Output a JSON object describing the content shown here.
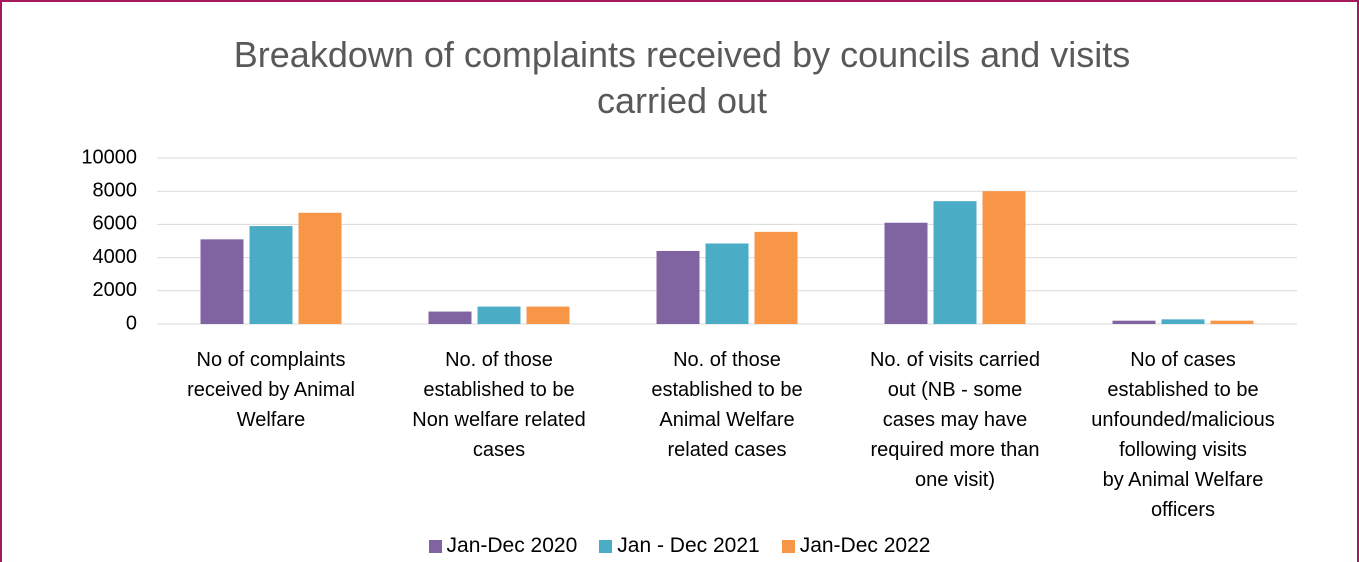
{
  "chart_data": {
    "type": "bar",
    "title": "Breakdown of complaints received by councils and visits carried out",
    "categories": [
      "No of complaints\nreceived by Animal\nWelfare",
      "No. of those\nestablished to be\nNon welfare related\ncases",
      "No. of those\nestablished to be\nAnimal Welfare\nrelated cases",
      "No. of visits carried\nout (NB - some\ncases may have\nrequired more than\none visit)",
      "No of cases\nestablished to be\nunfounded/malicious\nfollowing  visits\nby Animal Welfare\nofficers"
    ],
    "series": [
      {
        "name": "Jan-Dec 2020",
        "color": "#8064a2",
        "values": [
          5100,
          750,
          4400,
          6100,
          200
        ]
      },
      {
        "name": "Jan - Dec 2021",
        "color": "#4bacc6",
        "values": [
          5900,
          1050,
          4850,
          7400,
          280
        ]
      },
      {
        "name": "Jan-Dec 2022",
        "color": "#f79646",
        "values": [
          6700,
          1050,
          5550,
          8000,
          200
        ]
      }
    ],
    "ylim": [
      0,
      10000
    ],
    "yticks": [
      0,
      2000,
      4000,
      6000,
      8000,
      10000
    ],
    "grid": true,
    "legend": "bottom"
  }
}
